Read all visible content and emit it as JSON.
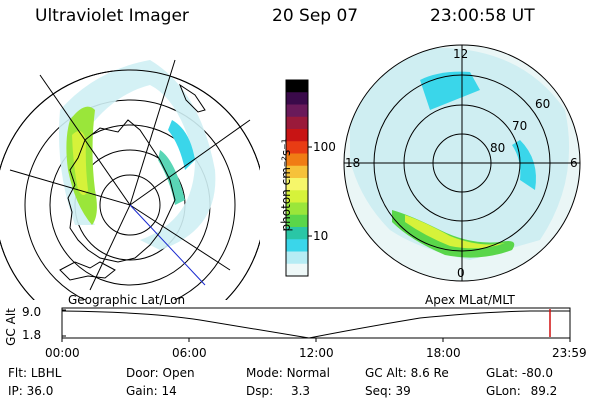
{
  "header": {
    "title": "Ultraviolet Imager",
    "date": "20 Sep 07",
    "time": "23:00:58 UT"
  },
  "colorbar": {
    "label": "photon cm⁻²s⁻¹",
    "ticks": [
      "100",
      "10"
    ],
    "colors": [
      "#000000",
      "#3a0a4a",
      "#6a1a5a",
      "#9a1a3a",
      "#c81414",
      "#e83c14",
      "#f07c14",
      "#f6c23a",
      "#f6f66a",
      "#d6f23a",
      "#9ae63a",
      "#5ad64a",
      "#2ac6a6",
      "#3ad6ea",
      "#b6ecf4",
      "#eef8f8"
    ]
  },
  "polar": {
    "labels": {
      "top": "12",
      "bottom": "0",
      "left": "18",
      "right": "6"
    },
    "rings": [
      "60",
      "70",
      "80"
    ]
  },
  "timeline": {
    "left_label": "Geographic Lat/Lon",
    "right_label": "Apex MLat/MLT",
    "axis_title": "GC Alt",
    "y_max": "9.0",
    "y_min": "1.8",
    "x_ticks": [
      "00:00",
      "06:00",
      "12:00",
      "18:00",
      "23:59"
    ],
    "marker_color": "#d01010"
  },
  "info": {
    "flt_label": "Flt:",
    "flt_value": "LBHL",
    "ip_label": "IP:",
    "ip_value": "36.0",
    "door_label": "Door:",
    "door_value": "Open",
    "gain_label": "Gain:",
    "gain_value": "14",
    "mode_label": "Mode:",
    "mode_value": "Normal",
    "dsp_label": "Dsp:",
    "dsp_value": "3.3",
    "gcalt_label": "GC Alt:",
    "gcalt_value": "8.6 Re",
    "seq_label": "Seq:",
    "seq_value": "39",
    "glat_label": "GLat:",
    "glat_value": "-80.0",
    "glon_label": "GLon:",
    "glon_value": "89.2"
  }
}
